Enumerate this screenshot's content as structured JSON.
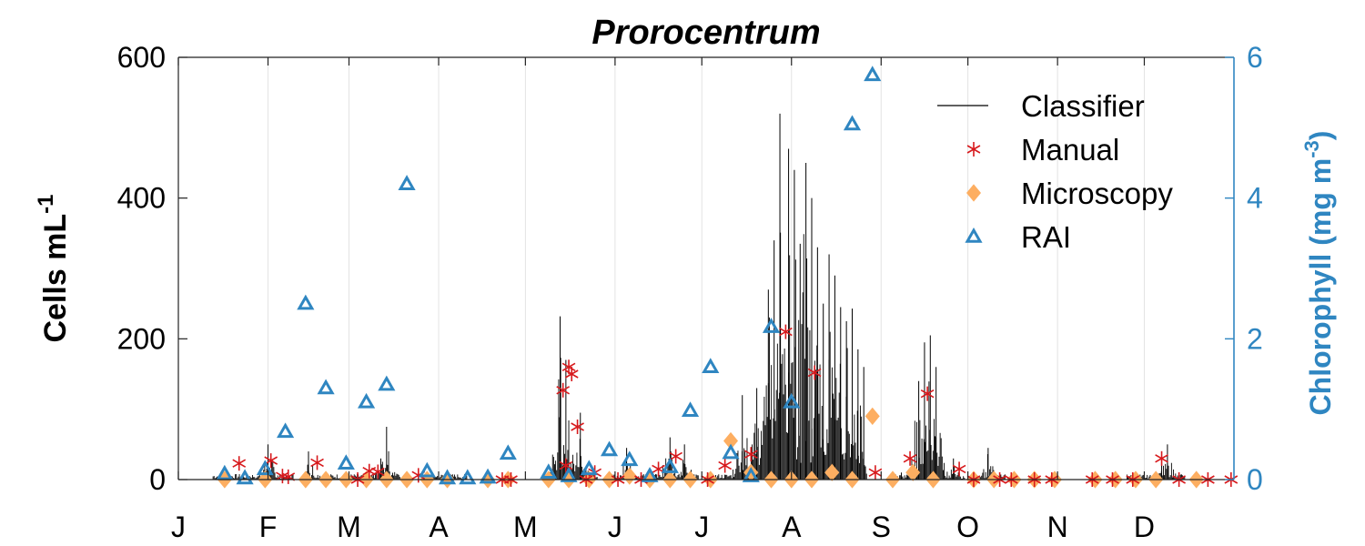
{
  "chart_data": {
    "type": "line",
    "title": "Prorocentrum",
    "xlabel": "",
    "x_ticks": [
      "J",
      "F",
      "M",
      "A",
      "M",
      "J",
      "J",
      "A",
      "S",
      "O",
      "N",
      "D"
    ],
    "xlim_days": [
      0,
      365
    ],
    "ylabel_left": {
      "text": "Cells mL",
      "sup": "-1"
    },
    "ylabel_right": {
      "text": "Chlorophyll (mg m",
      "sup": "-3",
      "close": ")"
    },
    "ylim_left": [
      0,
      600
    ],
    "ylim_right": [
      0,
      6
    ],
    "yticks_left": [
      "0",
      "200",
      "400",
      "600"
    ],
    "yticks_right": [
      "0",
      "2",
      "4",
      "6"
    ],
    "grid": "vertical",
    "legend_position": "top-right",
    "colors": {
      "classifier": "#000000",
      "manual": "#d7191c",
      "microscopy": "#fdae61",
      "rai": "#2f86c1"
    },
    "series": [
      {
        "name": "Classifier",
        "marker": "line",
        "peaks": [
          {
            "x": 31,
            "y": 50
          },
          {
            "x": 45,
            "y": 40
          },
          {
            "x": 70,
            "y": 30
          },
          {
            "x": 72,
            "y": 75
          },
          {
            "x": 132,
            "y": 232
          },
          {
            "x": 134,
            "y": 170
          },
          {
            "x": 139,
            "y": 95
          },
          {
            "x": 155,
            "y": 45
          },
          {
            "x": 170,
            "y": 60
          },
          {
            "x": 175,
            "y": 50
          },
          {
            "x": 195,
            "y": 120
          },
          {
            "x": 200,
            "y": 130
          },
          {
            "x": 204,
            "y": 270
          },
          {
            "x": 206,
            "y": 340
          },
          {
            "x": 208,
            "y": 520
          },
          {
            "x": 211,
            "y": 470
          },
          {
            "x": 213,
            "y": 440
          },
          {
            "x": 215,
            "y": 335
          },
          {
            "x": 217,
            "y": 450
          },
          {
            "x": 219,
            "y": 400
          },
          {
            "x": 221,
            "y": 330
          },
          {
            "x": 223,
            "y": 250
          },
          {
            "x": 225,
            "y": 320
          },
          {
            "x": 227,
            "y": 290
          },
          {
            "x": 229,
            "y": 245
          },
          {
            "x": 231,
            "y": 225
          },
          {
            "x": 233,
            "y": 243
          },
          {
            "x": 235,
            "y": 185
          },
          {
            "x": 237,
            "y": 160
          },
          {
            "x": 250,
            "y": 10
          },
          {
            "x": 256,
            "y": 140
          },
          {
            "x": 258,
            "y": 195
          },
          {
            "x": 260,
            "y": 205
          },
          {
            "x": 262,
            "y": 160
          },
          {
            "x": 268,
            "y": 30
          },
          {
            "x": 280,
            "y": 45
          },
          {
            "x": 340,
            "y": 20
          },
          {
            "x": 342,
            "y": 50
          }
        ]
      },
      {
        "name": "Manual",
        "marker": "asterisk",
        "points": [
          {
            "x": 21,
            "y": 23
          },
          {
            "x": 32,
            "y": 27
          },
          {
            "x": 36,
            "y": 5
          },
          {
            "x": 38,
            "y": 4
          },
          {
            "x": 48,
            "y": 24
          },
          {
            "x": 62,
            "y": 0
          },
          {
            "x": 66,
            "y": 12
          },
          {
            "x": 69,
            "y": 11
          },
          {
            "x": 83,
            "y": 6
          },
          {
            "x": 112,
            "y": 0
          },
          {
            "x": 115,
            "y": 0
          },
          {
            "x": 133,
            "y": 127
          },
          {
            "x": 134,
            "y": 20
          },
          {
            "x": 135,
            "y": 160
          },
          {
            "x": 136,
            "y": 150
          },
          {
            "x": 138,
            "y": 75
          },
          {
            "x": 141,
            "y": 0
          },
          {
            "x": 144,
            "y": 10
          },
          {
            "x": 152,
            "y": 0
          },
          {
            "x": 160,
            "y": 0
          },
          {
            "x": 166,
            "y": 15
          },
          {
            "x": 172,
            "y": 33
          },
          {
            "x": 183,
            "y": 0
          },
          {
            "x": 189,
            "y": 20
          },
          {
            "x": 198,
            "y": 36
          },
          {
            "x": 210,
            "y": 210
          },
          {
            "x": 220,
            "y": 152
          },
          {
            "x": 241,
            "y": 10
          },
          {
            "x": 253,
            "y": 30
          },
          {
            "x": 259,
            "y": 122
          },
          {
            "x": 270,
            "y": 15
          },
          {
            "x": 275,
            "y": 0
          },
          {
            "x": 284,
            "y": 0
          },
          {
            "x": 288,
            "y": 0
          },
          {
            "x": 296,
            "y": 0
          },
          {
            "x": 302,
            "y": 0
          },
          {
            "x": 316,
            "y": 0
          },
          {
            "x": 323,
            "y": 0
          },
          {
            "x": 330,
            "y": 0
          },
          {
            "x": 340,
            "y": 30
          },
          {
            "x": 346,
            "y": 0
          },
          {
            "x": 356,
            "y": 0
          },
          {
            "x": 364,
            "y": 0
          }
        ]
      },
      {
        "name": "Microscopy",
        "marker": "diamond",
        "points": [
          {
            "x": 16,
            "y": 0
          },
          {
            "x": 30,
            "y": 0
          },
          {
            "x": 44,
            "y": 0
          },
          {
            "x": 51,
            "y": 0
          },
          {
            "x": 58,
            "y": 0
          },
          {
            "x": 65,
            "y": 0
          },
          {
            "x": 72,
            "y": 0
          },
          {
            "x": 79,
            "y": 0
          },
          {
            "x": 86,
            "y": 0
          },
          {
            "x": 93,
            "y": 0
          },
          {
            "x": 107,
            "y": 0
          },
          {
            "x": 114,
            "y": 0
          },
          {
            "x": 128,
            "y": 0
          },
          {
            "x": 135,
            "y": 0
          },
          {
            "x": 142,
            "y": 0
          },
          {
            "x": 149,
            "y": 0
          },
          {
            "x": 156,
            "y": 5
          },
          {
            "x": 163,
            "y": 0
          },
          {
            "x": 170,
            "y": 0
          },
          {
            "x": 177,
            "y": 0
          },
          {
            "x": 184,
            "y": 0
          },
          {
            "x": 191,
            "y": 55
          },
          {
            "x": 198,
            "y": 10
          },
          {
            "x": 205,
            "y": 0
          },
          {
            "x": 212,
            "y": 0
          },
          {
            "x": 219,
            "y": 0
          },
          {
            "x": 226,
            "y": 10
          },
          {
            "x": 233,
            "y": 0
          },
          {
            "x": 240,
            "y": 90
          },
          {
            "x": 247,
            "y": 0
          },
          {
            "x": 254,
            "y": 10
          },
          {
            "x": 261,
            "y": 0
          },
          {
            "x": 275,
            "y": 0
          },
          {
            "x": 282,
            "y": 0
          },
          {
            "x": 289,
            "y": 0
          },
          {
            "x": 296,
            "y": 0
          },
          {
            "x": 303,
            "y": 0
          },
          {
            "x": 317,
            "y": 0
          },
          {
            "x": 324,
            "y": 0
          },
          {
            "x": 331,
            "y": 0
          },
          {
            "x": 338,
            "y": 0
          },
          {
            "x": 352,
            "y": 0
          }
        ]
      },
      {
        "name": "RAI",
        "marker": "triangle",
        "axis": "right",
        "points": [
          {
            "x": 16,
            "y": 0.08
          },
          {
            "x": 23,
            "y": 0.02
          },
          {
            "x": 30,
            "y": 0.15
          },
          {
            "x": 37,
            "y": 0.68
          },
          {
            "x": 44,
            "y": 2.5
          },
          {
            "x": 51,
            "y": 1.3
          },
          {
            "x": 58,
            "y": 0.23
          },
          {
            "x": 65,
            "y": 1.1
          },
          {
            "x": 72,
            "y": 1.35
          },
          {
            "x": 79,
            "y": 4.2
          },
          {
            "x": 86,
            "y": 0.12
          },
          {
            "x": 93,
            "y": 0.02
          },
          {
            "x": 100,
            "y": 0.02
          },
          {
            "x": 107,
            "y": 0.03
          },
          {
            "x": 114,
            "y": 0.37
          },
          {
            "x": 128,
            "y": 0.1
          },
          {
            "x": 135,
            "y": 0.05
          },
          {
            "x": 142,
            "y": 0.15
          },
          {
            "x": 149,
            "y": 0.42
          },
          {
            "x": 156,
            "y": 0.28
          },
          {
            "x": 163,
            "y": 0.05
          },
          {
            "x": 170,
            "y": 0.18
          },
          {
            "x": 177,
            "y": 0.98
          },
          {
            "x": 184,
            "y": 1.6
          },
          {
            "x": 191,
            "y": 0.38
          },
          {
            "x": 198,
            "y": 0.05
          },
          {
            "x": 205,
            "y": 2.17
          },
          {
            "x": 212,
            "y": 1.1
          },
          {
            "x": 233,
            "y": 5.05
          },
          {
            "x": 240,
            "y": 5.75
          }
        ]
      }
    ]
  }
}
